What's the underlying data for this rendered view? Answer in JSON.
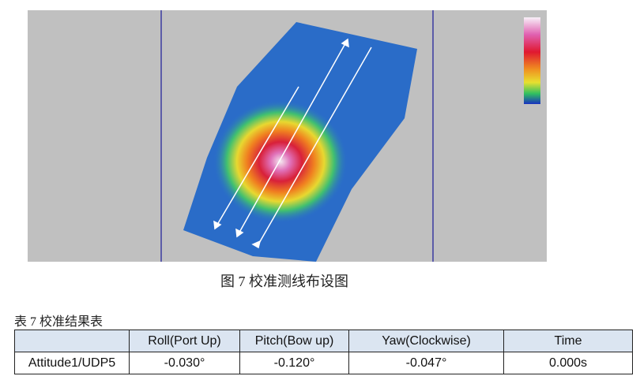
{
  "figure": {
    "caption": "图 7 校准测线布设图"
  },
  "table": {
    "caption": "表 7 校准结果表",
    "header": [
      "Roll(Port Up)",
      "Pitch(Bow up)",
      "Yaw(Clockwise)",
      "Time"
    ],
    "rows": [
      [
        "Attitude1/UDP5",
        "-0.030°",
        "-0.120°",
        "-0.047°",
        "0.000s"
      ]
    ]
  }
}
